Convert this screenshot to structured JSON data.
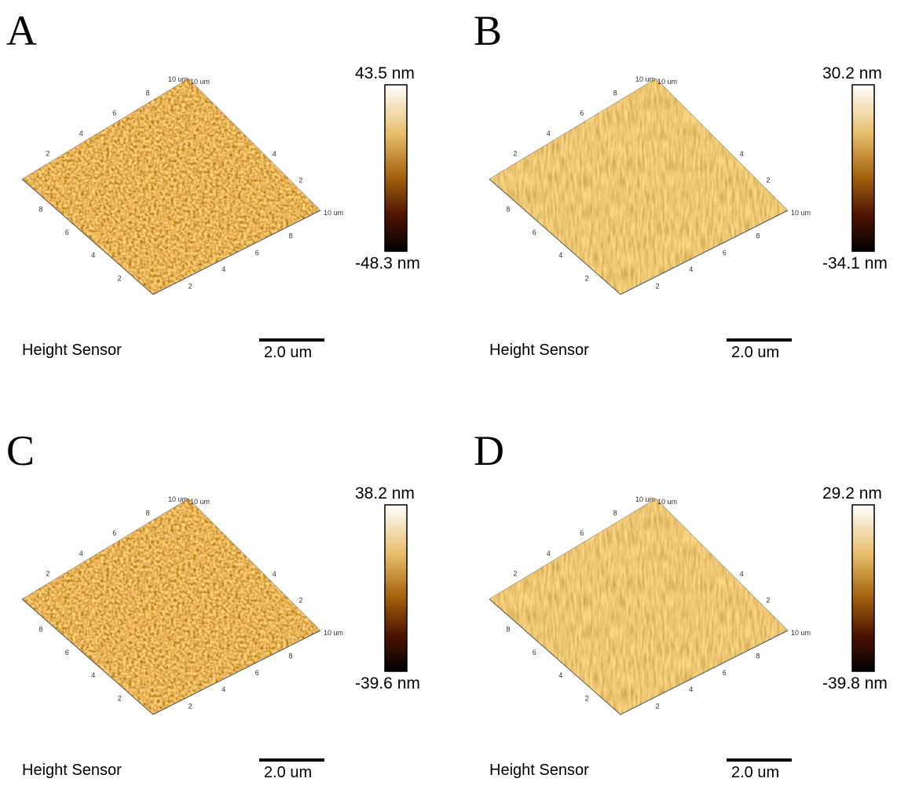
{
  "panels": [
    {
      "label": "A",
      "scale_max": "43.5 nm",
      "scale_min": "-48.3 nm",
      "caption": "Height Sensor",
      "scalebar": "2.0 um"
    },
    {
      "label": "B",
      "scale_max": "30.2 nm",
      "scale_min": "-34.1 nm",
      "caption": "Height Sensor",
      "scalebar": "2.0 um"
    },
    {
      "label": "C",
      "scale_max": "38.2 nm",
      "scale_min": "-39.6 nm",
      "caption": "Height Sensor",
      "scalebar": "2.0 um"
    },
    {
      "label": "D",
      "scale_max": "29.2 nm",
      "scale_min": "-39.8 nm",
      "caption": "Height Sensor",
      "scalebar": "2.0 um"
    }
  ],
  "surface_axes": {
    "back_left": [
      "2",
      "4",
      "6",
      "8"
    ],
    "top": [
      "10 um",
      "10 um"
    ],
    "back_right": [
      "2",
      "4"
    ],
    "front_left": [
      "8",
      "6",
      "4",
      "2"
    ],
    "front_right": [
      "2",
      "4",
      "6",
      "8"
    ],
    "right_corner": "10 um"
  }
}
